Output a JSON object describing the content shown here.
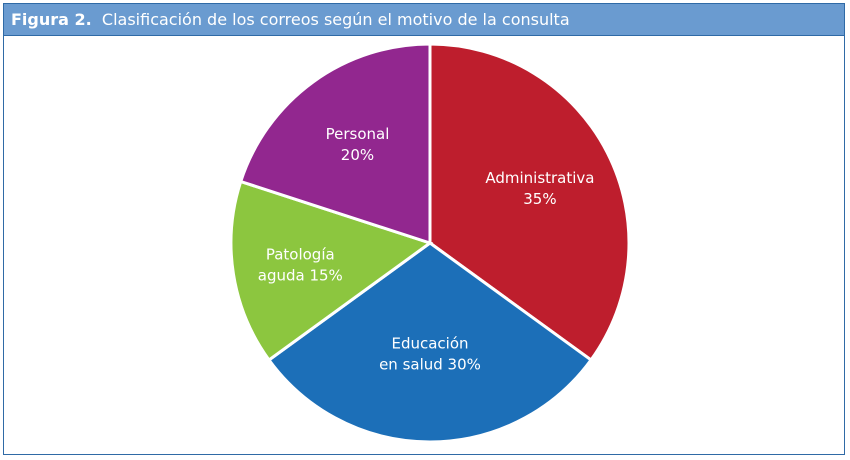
{
  "figure": {
    "number": "Figura 2.",
    "title": "Clasificación de los correos según el motivo de la consulta"
  },
  "chart_data": {
    "type": "pie",
    "title": "Clasificación de los correos según el motivo de la consulta",
    "start": "top",
    "direction": "clockwise",
    "slices": [
      {
        "label_lines": [
          "Administrativa",
          "35%"
        ],
        "category": "Administrativa",
        "value": 35,
        "color": "#be1e2d"
      },
      {
        "label_lines": [
          "Educación",
          "en salud 30%"
        ],
        "category": "Educación en salud",
        "value": 30,
        "color": "#1c6fb8"
      },
      {
        "label_lines": [
          "Patología",
          "aguda 15%"
        ],
        "category": "Patología aguda",
        "value": 15,
        "color": "#8cc63f"
      },
      {
        "label_lines": [
          "Personal",
          "20%"
        ],
        "category": "Personal",
        "value": 20,
        "color": "#92278f"
      }
    ]
  }
}
